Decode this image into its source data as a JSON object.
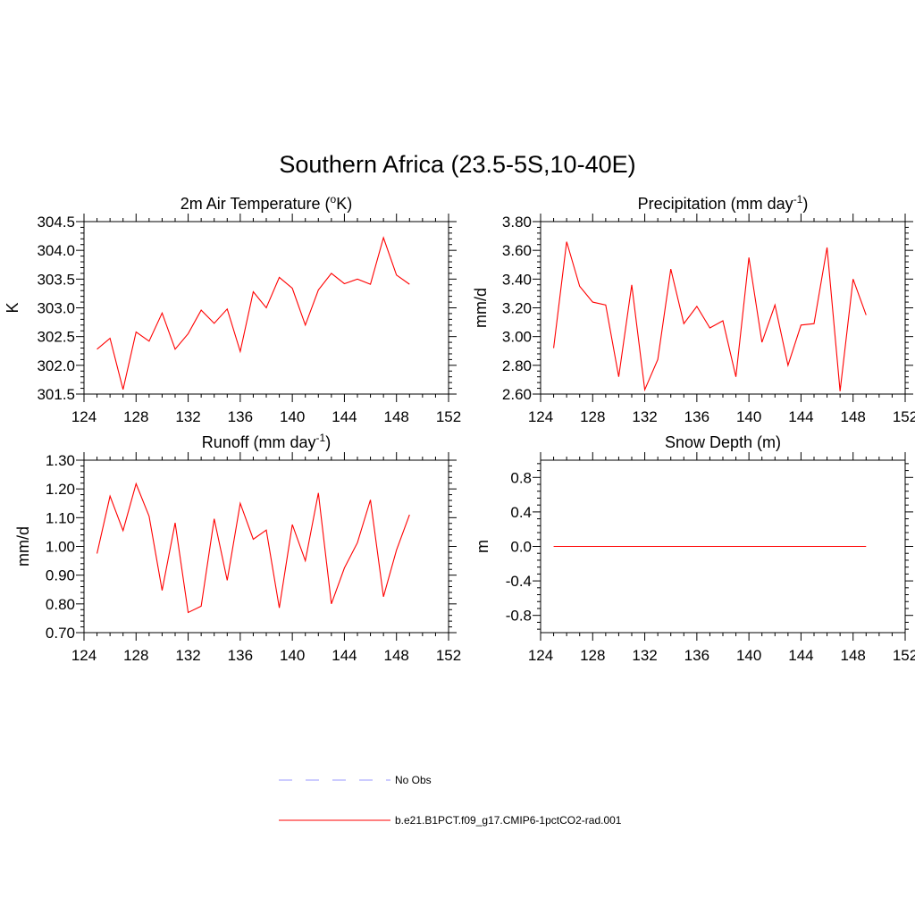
{
  "figure": {
    "title": "Southern Africa (23.5-5S,10-40E)"
  },
  "colors": {
    "series": "#ff0000",
    "obs": "#9999ff",
    "axis": "#000000"
  },
  "legend": {
    "items": [
      {
        "label": "No Obs",
        "style": "dashed",
        "color": "#9999ff"
      },
      {
        "label": "b.e21.B1PCT.f09_g17.CMIP6-1pctCO2-rad.001",
        "style": "solid",
        "color": "#ff0000"
      }
    ]
  },
  "chart_data": [
    {
      "type": "line",
      "title": "2m Air Temperature (oK)",
      "title_parts": {
        "pre": "2m Air Temperature (",
        "sup": "o",
        "post": "K)"
      },
      "ylabel": "K",
      "xlim": [
        124,
        152
      ],
      "xticks": [
        124,
        128,
        132,
        136,
        140,
        144,
        148,
        152
      ],
      "ylim": [
        301.5,
        304.5
      ],
      "yticks": [
        "301.5",
        "302.0",
        "302.5",
        "303.0",
        "303.5",
        "304.0",
        "304.5"
      ],
      "series": [
        {
          "x": [
            125,
            126,
            127,
            128,
            129,
            130,
            131,
            132,
            133,
            134,
            135,
            136,
            137,
            138,
            139,
            140,
            141,
            142,
            143,
            144,
            145,
            146,
            147,
            148,
            149
          ],
          "values": [
            302.28,
            302.47,
            301.58,
            302.58,
            302.42,
            302.91,
            302.28,
            302.55,
            302.96,
            302.73,
            302.98,
            302.24,
            303.28,
            303.0,
            303.53,
            303.34,
            302.7,
            303.31,
            303.6,
            303.42,
            303.5,
            303.41,
            304.22,
            303.57,
            303.41
          ]
        }
      ]
    },
    {
      "type": "line",
      "title": "Precipitation (mm day-1)",
      "title_parts": {
        "pre": "Precipitation (mm day",
        "sup": "-1",
        "post": ")"
      },
      "ylabel": "mm/d",
      "xlim": [
        124,
        152
      ],
      "xticks": [
        124,
        128,
        132,
        136,
        140,
        144,
        148,
        152
      ],
      "ylim": [
        2.6,
        3.8
      ],
      "yticks": [
        "2.60",
        "2.80",
        "3.00",
        "3.20",
        "3.40",
        "3.60",
        "3.80"
      ],
      "series": [
        {
          "x": [
            125,
            126,
            127,
            128,
            129,
            130,
            131,
            132,
            133,
            134,
            135,
            136,
            137,
            138,
            139,
            140,
            141,
            142,
            143,
            144,
            145,
            146,
            147,
            148,
            149
          ],
          "values": [
            2.92,
            3.66,
            3.35,
            3.24,
            3.22,
            2.72,
            3.36,
            2.63,
            2.84,
            3.47,
            3.09,
            3.21,
            3.06,
            3.11,
            2.72,
            3.55,
            2.96,
            3.22,
            2.8,
            3.08,
            3.09,
            3.62,
            2.62,
            3.4,
            3.15
          ]
        }
      ]
    },
    {
      "type": "line",
      "title": "Runoff (mm day-1)",
      "title_parts": {
        "pre": "Runoff (mm day",
        "sup": "-1",
        "post": ")"
      },
      "ylabel": "mm/d",
      "xlim": [
        124,
        152
      ],
      "xticks": [
        124,
        128,
        132,
        136,
        140,
        144,
        148,
        152
      ],
      "ylim": [
        0.7,
        1.3
      ],
      "yticks": [
        "0.70",
        "0.80",
        "0.90",
        "1.00",
        "1.10",
        "1.20",
        "1.30"
      ],
      "series": [
        {
          "x": [
            125,
            126,
            127,
            128,
            129,
            130,
            131,
            132,
            133,
            134,
            135,
            136,
            137,
            138,
            139,
            140,
            141,
            142,
            143,
            144,
            145,
            146,
            147,
            148,
            149
          ],
          "values": [
            0.975,
            1.175,
            1.055,
            1.218,
            1.105,
            0.847,
            1.082,
            0.77,
            0.792,
            1.096,
            0.882,
            1.15,
            1.025,
            1.057,
            0.786,
            1.076,
            0.95,
            1.186,
            0.8,
            0.925,
            1.013,
            1.162,
            0.825,
            0.987,
            1.11
          ]
        }
      ]
    },
    {
      "type": "line",
      "title": "Snow Depth (m)",
      "title_parts": {
        "pre": "Snow Depth (m)",
        "sup": "",
        "post": ""
      },
      "ylabel": "m",
      "xlim": [
        124,
        152
      ],
      "xticks": [
        124,
        128,
        132,
        136,
        140,
        144,
        148,
        152
      ],
      "ylim": [
        -1.0,
        1.0
      ],
      "yticks": [
        "-0.8",
        "-0.4",
        "0.0",
        "0.4",
        "0.8"
      ],
      "series": [
        {
          "x": [
            125,
            126,
            127,
            128,
            129,
            130,
            131,
            132,
            133,
            134,
            135,
            136,
            137,
            138,
            139,
            140,
            141,
            142,
            143,
            144,
            145,
            146,
            147,
            148,
            149
          ],
          "values": [
            0,
            0,
            0,
            0,
            0,
            0,
            0,
            0,
            0,
            0,
            0,
            0,
            0,
            0,
            0,
            0,
            0,
            0,
            0,
            0,
            0,
            0,
            0,
            0,
            0
          ]
        }
      ]
    }
  ]
}
